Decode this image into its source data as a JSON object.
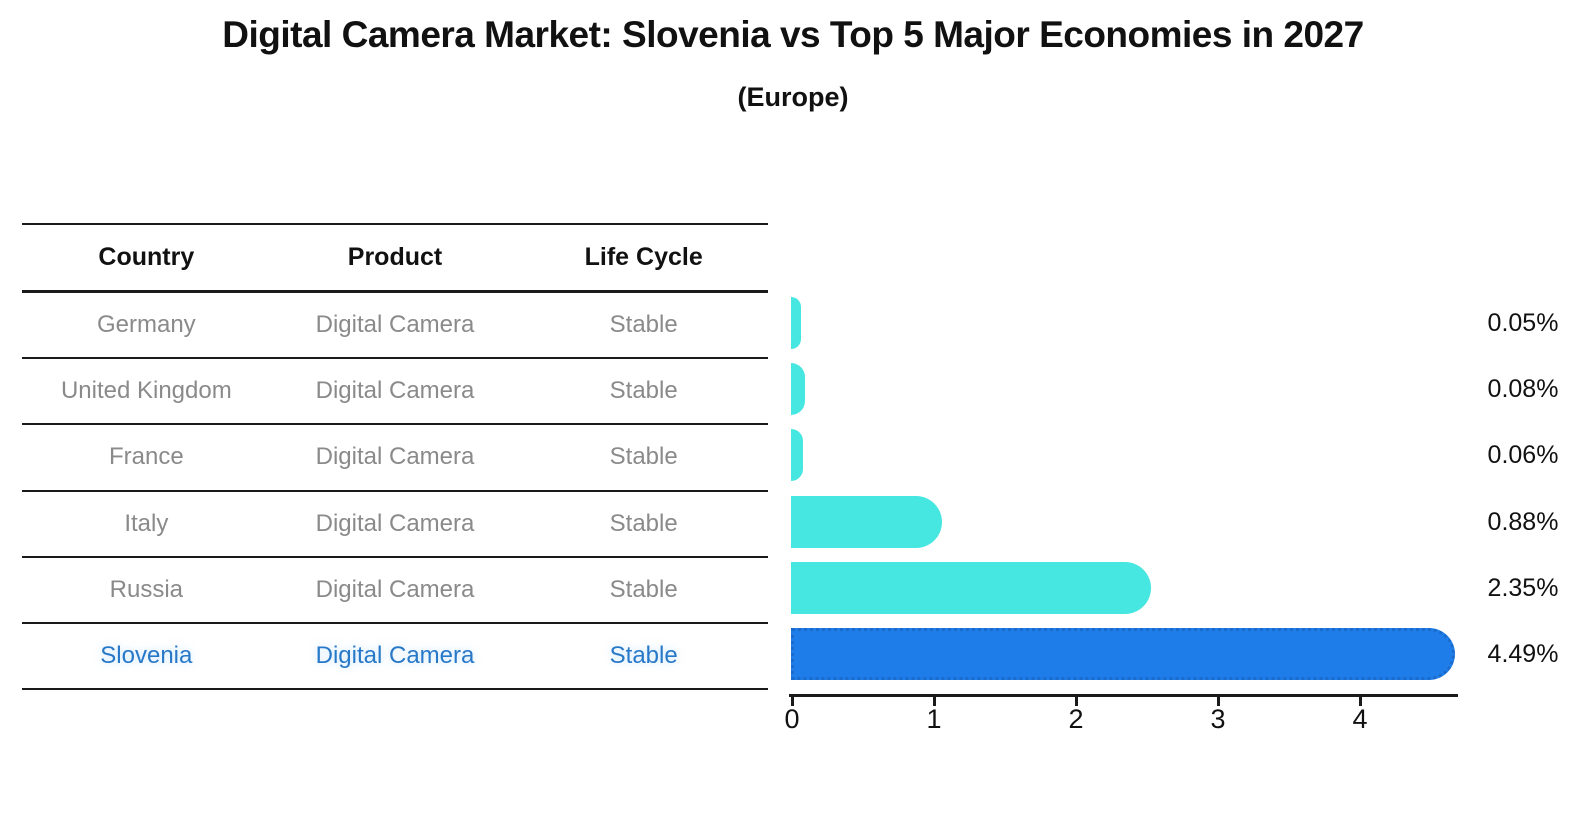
{
  "header": {
    "title": "Digital Camera Market: Slovenia vs Top 5 Major Economies in 2027",
    "subtitle": "(Europe)"
  },
  "table": {
    "columns": [
      "Country",
      "Product",
      "Life Cycle"
    ],
    "rows": [
      {
        "country": "Germany",
        "product": "Digital Camera",
        "life_cycle": "Stable",
        "highlight": false
      },
      {
        "country": "United Kingdom",
        "product": "Digital Camera",
        "life_cycle": "Stable",
        "highlight": false
      },
      {
        "country": "France",
        "product": "Digital Camera",
        "life_cycle": "Stable",
        "highlight": false
      },
      {
        "country": "Italy",
        "product": "Digital Camera",
        "life_cycle": "Stable",
        "highlight": false
      },
      {
        "country": "Russia",
        "product": "Digital Camera",
        "life_cycle": "Stable",
        "highlight": false
      },
      {
        "country": "Slovenia",
        "product": "Digital Camera",
        "life_cycle": "Stable",
        "highlight": true
      }
    ]
  },
  "chart_data": {
    "type": "bar",
    "orientation": "horizontal",
    "title": "Digital Camera Market: Slovenia vs Top 5 Major Economies in 2027",
    "subtitle": "(Europe)",
    "categories": [
      "Germany",
      "United Kingdom",
      "France",
      "Italy",
      "Russia",
      "Slovenia"
    ],
    "values": [
      0.05,
      0.08,
      0.06,
      0.88,
      2.35,
      4.49
    ],
    "labels": [
      "0.05%",
      "0.08%",
      "0.06%",
      "0.88%",
      "2.35%",
      "4.49%"
    ],
    "highlight_index": 5,
    "xticks": [
      0,
      1,
      2,
      3,
      4
    ],
    "xlim": [
      0,
      4.72
    ],
    "grid": false,
    "legend": null,
    "colors": {
      "bar": "#46e6e1",
      "bar_highlight": "#1e7de8",
      "bar_highlight_border": "#1a6bcc",
      "axis": "#1a1a1a",
      "text_muted": "#8a8a8a",
      "text_highlight": "#2878c8",
      "text_main": "#111111"
    }
  }
}
